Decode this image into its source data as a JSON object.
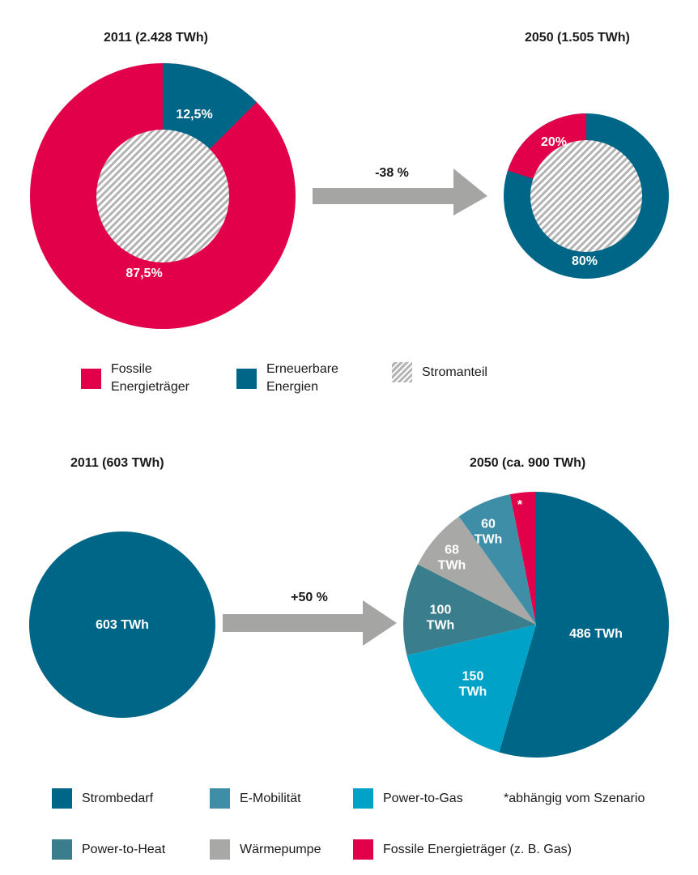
{
  "colors": {
    "fossil": "#e2004a",
    "renewable": "#006688",
    "hatch": "#b3b3b3",
    "arrow": "#a5a5a3",
    "strombedarf": "#006688",
    "emob": "#3e8ea8",
    "p2g": "#00a3c7",
    "p2h": "#3a7d8c",
    "waerme": "#a8a8a6",
    "fossil_gas": "#e2004a"
  },
  "chart_data": [
    {
      "type": "pie",
      "title": "2011 (2.428 TWh)",
      "slices": [
        {
          "name": "Erneuerbare Energien",
          "value": 12.5,
          "label": "12,5%"
        },
        {
          "name": "Fossile Energieträger",
          "value": 87.5,
          "label": "87,5%"
        }
      ],
      "inner_hatched_fraction_label": "Stromanteil"
    },
    {
      "type": "pie",
      "title": "2050 (1.505 TWh)",
      "slices": [
        {
          "name": "Erneuerbare Energien",
          "value": 80,
          "label": "80%"
        },
        {
          "name": "Fossile Energieträger",
          "value": 20,
          "label": "20%"
        }
      ],
      "inner_hatched_fraction_label": "Stromanteil"
    },
    {
      "type": "pie",
      "title": "2011 (603 TWh)",
      "slices": [
        {
          "name": "Strombedarf",
          "value": 603,
          "label": "603 TWh"
        }
      ]
    },
    {
      "type": "pie",
      "title": "2050 (ca. 900 TWh)",
      "slices": [
        {
          "name": "Strombedarf",
          "value": 486,
          "label": "486 TWh"
        },
        {
          "name": "Power-to-Gas",
          "value": 150,
          "label": "150 TWh"
        },
        {
          "name": "Power-to-Heat",
          "value": 100,
          "label": "100 TWh"
        },
        {
          "name": "Wärmepumpe",
          "value": 68,
          "label": "68 TWh"
        },
        {
          "name": "E-Mobilität",
          "value": 60,
          "label": "60 TWh"
        },
        {
          "name": "Fossile Energieträger (z. B. Gas)",
          "value": 28,
          "label": "*"
        }
      ]
    }
  ],
  "arrows": {
    "top": "-38 %",
    "bottom": "+50 %"
  },
  "legend_top": {
    "fossil": "Fossile Energieträger",
    "fossil_line1": "Fossile",
    "fossil_line2": "Energieträger",
    "renewable_line1": "Erneuerbare",
    "renewable_line2": "Energien",
    "strom": "Stromanteil"
  },
  "legend_bottom": {
    "strombedarf": "Strombedarf",
    "emob": "E-Mobilität",
    "p2g": "Power-to-Gas",
    "note": "*abhängig vom Szenario",
    "p2h": "Power-to-Heat",
    "waerme": "Wärmepumpe",
    "fossil_gas": "Fossile Energieträger (z. B. Gas)"
  }
}
